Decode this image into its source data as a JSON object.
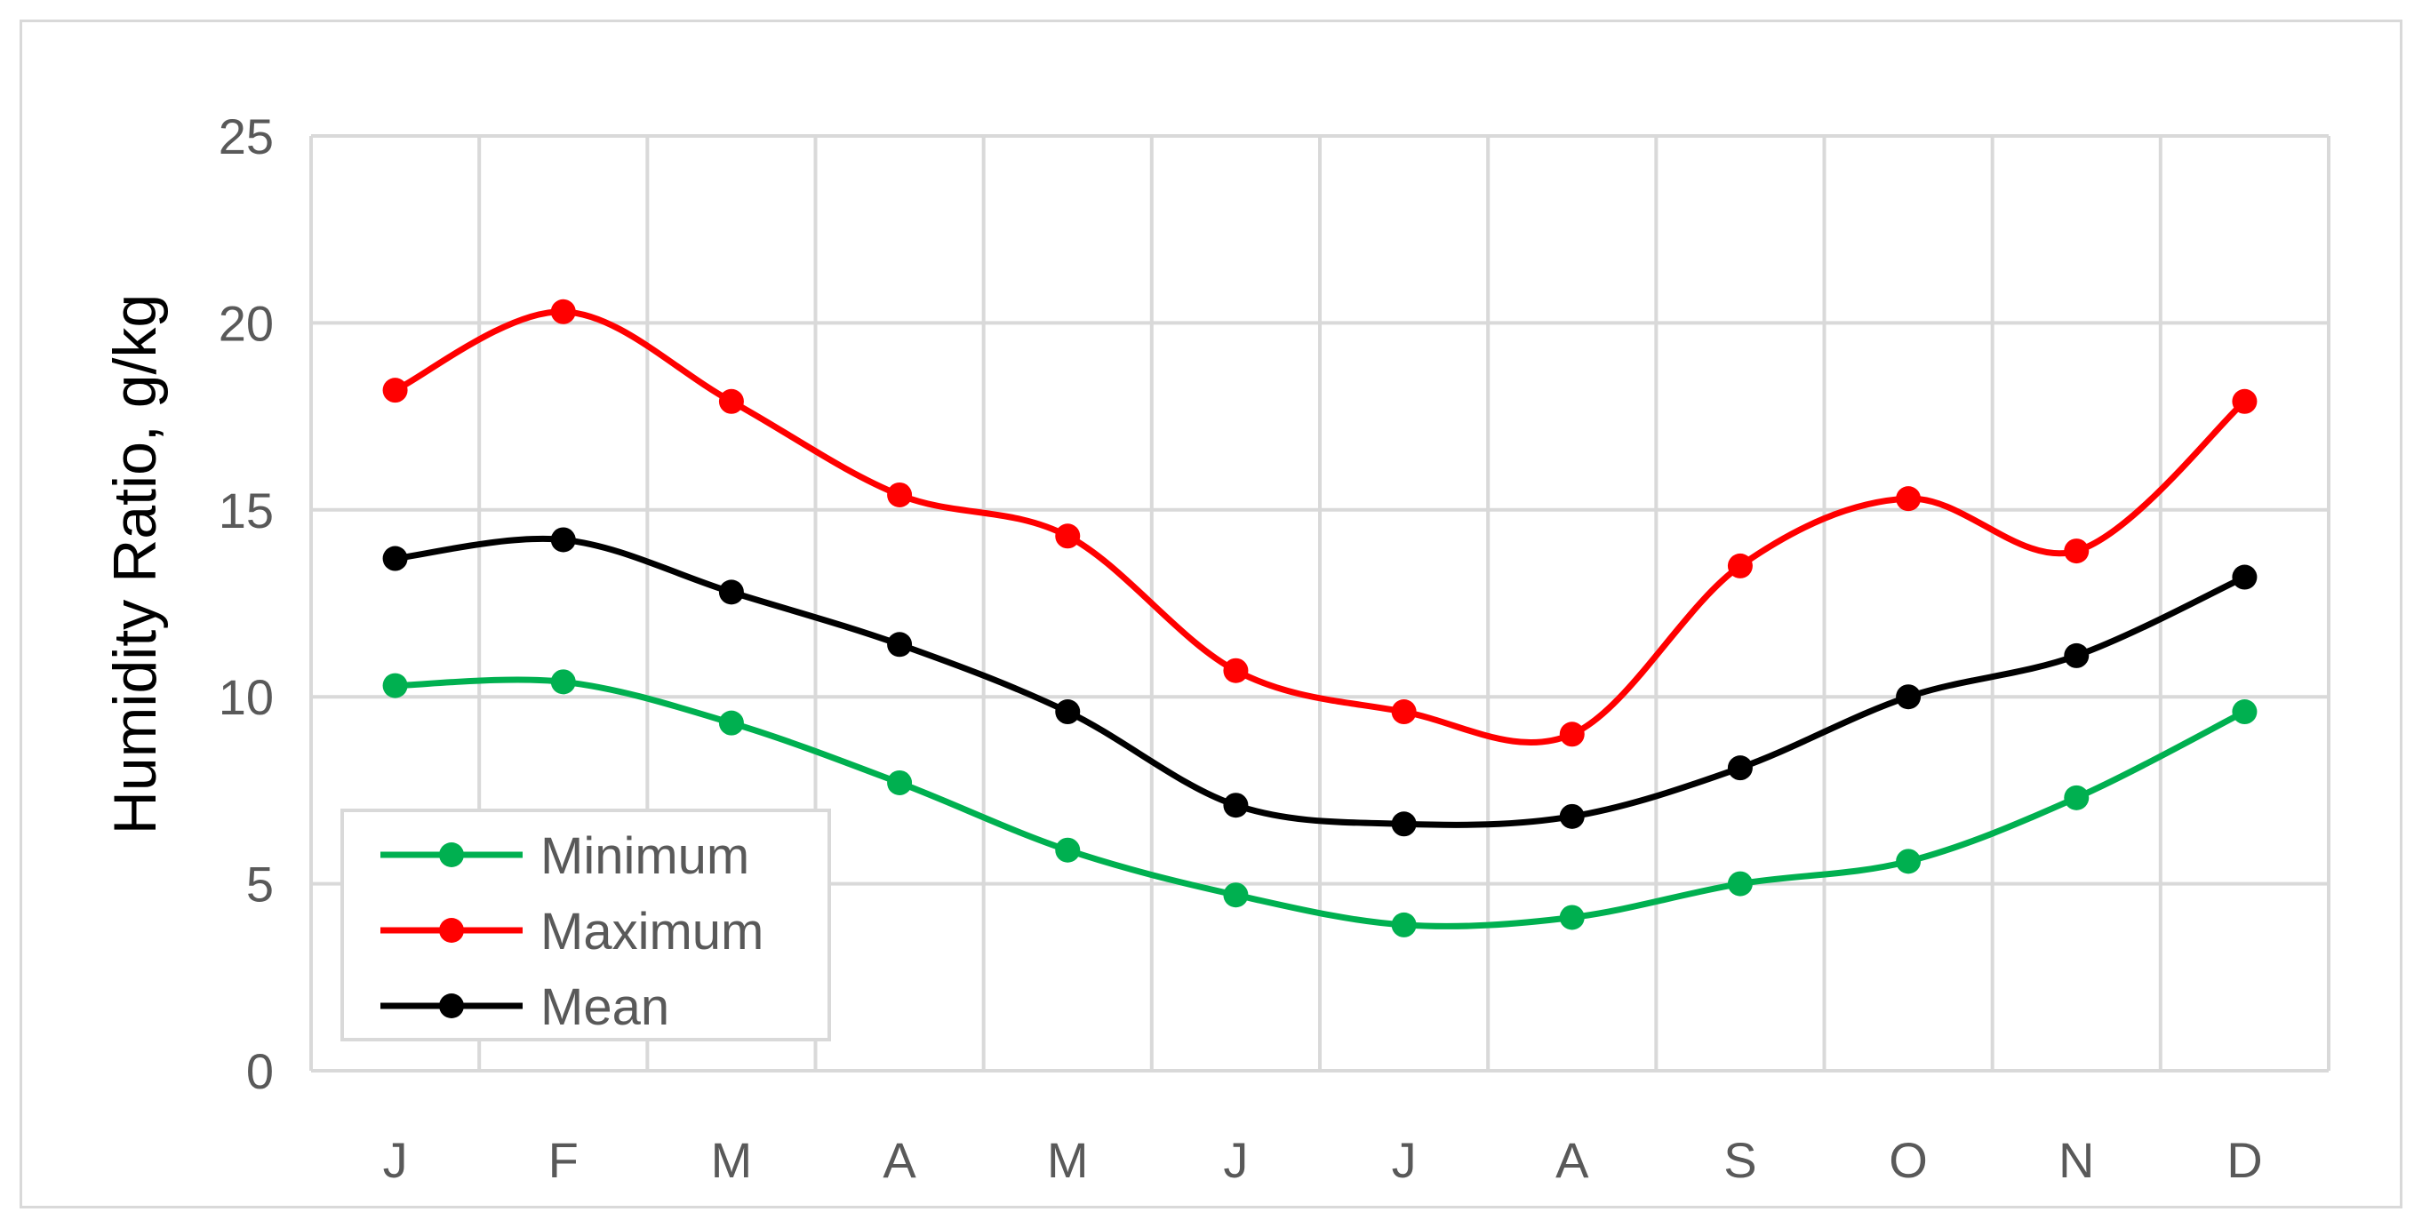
{
  "chart_data": {
    "type": "line",
    "title": "",
    "xlabel": "",
    "ylabel": "Humidity Ratio, g/kg",
    "categories": [
      "J",
      "F",
      "M",
      "A",
      "M",
      "J",
      "J",
      "A",
      "S",
      "O",
      "N",
      "D"
    ],
    "yticks": [
      "0",
      "5",
      "10",
      "15",
      "20",
      "25"
    ],
    "ylim": [
      0,
      25
    ],
    "grid": true,
    "legend_position": "bottom-left",
    "smooth": true,
    "series": [
      {
        "name": "Minimum",
        "color": "#00b050",
        "values": [
          10.3,
          10.4,
          9.3,
          7.7,
          5.9,
          4.7,
          3.9,
          4.1,
          5.0,
          5.6,
          7.3,
          9.6
        ]
      },
      {
        "name": "Maximum",
        "color": "#ff0000",
        "values": [
          18.2,
          20.3,
          17.9,
          15.4,
          14.3,
          10.7,
          9.6,
          9.0,
          13.5,
          15.3,
          13.9,
          17.9
        ]
      },
      {
        "name": "Mean",
        "color": "#000000",
        "values": [
          13.7,
          14.2,
          12.8,
          11.4,
          9.6,
          7.1,
          6.6,
          6.8,
          8.1,
          10.0,
          11.1,
          13.2
        ]
      }
    ]
  }
}
